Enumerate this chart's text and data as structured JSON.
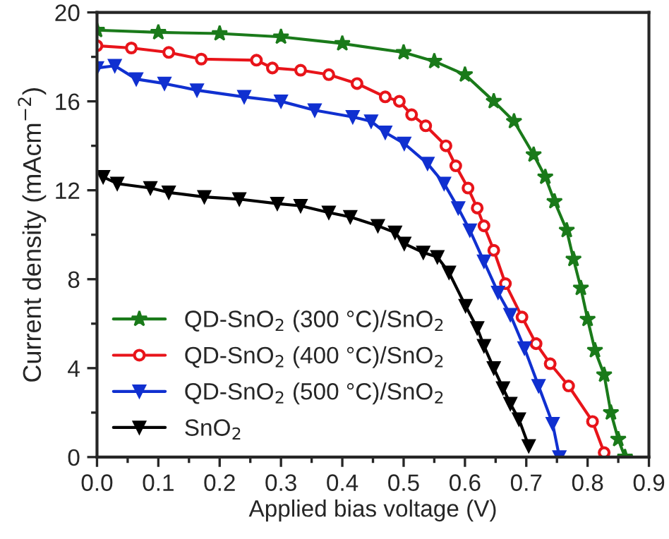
{
  "chart_data": {
    "type": "line",
    "xlabel": "Applied bias voltage (V)",
    "ylabel": "Current density (mAcm$^{−2}$)",
    "xlim": [
      0,
      0.9
    ],
    "ylim": [
      0,
      20
    ],
    "xticks": [
      {
        "value": 0,
        "label": "0.0"
      },
      0.1,
      0.2,
      0.3,
      0.4,
      0.5,
      0.6,
      0.7,
      0.8,
      0.9
    ],
    "yticks": [
      0,
      4,
      8,
      12,
      16,
      20
    ],
    "grid": false,
    "legend": "bottom left",
    "line_style": "solid",
    "series": [
      {
        "name": "QD-SnO$_{2}$ (300 °C)/SnO$_{2}$",
        "color": "#1a7a1a",
        "marker": "star",
        "x": [
          0,
          0.1,
          0.2,
          0.3,
          0.4,
          0.5,
          0.55,
          0.6,
          0.647,
          0.68,
          0.712,
          0.731,
          0.746,
          0.766,
          0.777,
          0.789,
          0.8,
          0.812,
          0.827,
          0.838,
          0.85,
          0.861
        ],
        "values": [
          19.2,
          19.1,
          19.05,
          18.9,
          18.6,
          18.2,
          17.8,
          17.2,
          16.0,
          15.1,
          13.6,
          12.6,
          11.5,
          10.2,
          8.9,
          7.6,
          6.2,
          4.8,
          3.7,
          2.0,
          0.8,
          0
        ]
      },
      {
        "name": "QD-SnO$_{2}$ (400 °C)/SnO$_{2}$",
        "color": "#e8141a",
        "marker": "circle",
        "x": [
          0,
          0.056,
          0.117,
          0.17,
          0.26,
          0.286,
          0.332,
          0.378,
          0.424,
          0.47,
          0.493,
          0.513,
          0.536,
          0.569,
          0.585,
          0.605,
          0.62,
          0.631,
          0.647,
          0.666,
          0.693,
          0.716,
          0.739,
          0.769,
          0.808,
          0.827
        ],
        "values": [
          18.5,
          18.4,
          18.2,
          17.9,
          17.85,
          17.5,
          17.4,
          17.2,
          16.8,
          16.2,
          16.0,
          15.4,
          14.9,
          14.0,
          13.1,
          12.1,
          11.2,
          10.4,
          9.3,
          7.8,
          6.3,
          5.1,
          4.2,
          3.2,
          1.6,
          0.2
        ]
      },
      {
        "name": "QD-SnO$_{2}$ (500 °C)/SnO$_{2}$",
        "color": "#1030d0",
        "marker": "triangle",
        "x": [
          0,
          0.029,
          0.064,
          0.11,
          0.163,
          0.24,
          0.3,
          0.355,
          0.417,
          0.447,
          0.47,
          0.501,
          0.539,
          0.566,
          0.589,
          0.608,
          0.631,
          0.654,
          0.674,
          0.697,
          0.72,
          0.743,
          0.754
        ],
        "values": [
          17.5,
          17.6,
          17.0,
          16.8,
          16.5,
          16.2,
          16.0,
          15.6,
          15.3,
          15.1,
          14.6,
          14.1,
          13.2,
          12.3,
          11.2,
          10.2,
          8.8,
          7.4,
          6.4,
          4.9,
          3.2,
          1.5,
          0
        ]
      },
      {
        "name": "SnO$_{2}$",
        "color": "#000000",
        "marker": "triangle",
        "x": [
          0.01,
          0.033,
          0.087,
          0.117,
          0.175,
          0.232,
          0.294,
          0.332,
          0.378,
          0.413,
          0.458,
          0.486,
          0.501,
          0.532,
          0.555,
          0.574,
          0.601,
          0.62,
          0.631,
          0.647,
          0.662,
          0.674,
          0.688,
          0.704
        ],
        "values": [
          12.6,
          12.3,
          12.1,
          11.9,
          11.7,
          11.6,
          11.4,
          11.3,
          11.0,
          10.8,
          10.4,
          10.1,
          9.6,
          9.2,
          9.0,
          8.3,
          6.8,
          5.8,
          5.0,
          4.0,
          3.1,
          2.4,
          1.7,
          0.5
        ]
      }
    ]
  }
}
